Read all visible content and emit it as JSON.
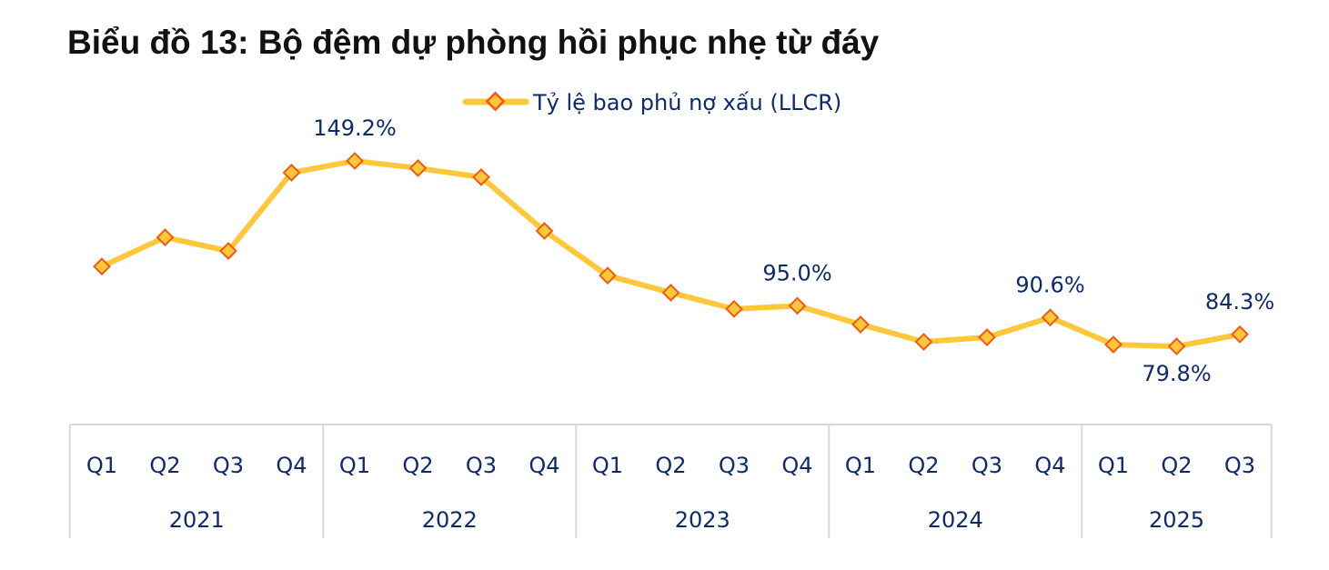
{
  "chart_data": {
    "type": "line",
    "title": "Biểu đồ 13: Bộ đệm dự phòng hồi phục nhẹ từ đáy",
    "legend": {
      "position": "top-center"
    },
    "categories": [
      "Q1",
      "Q2",
      "Q3",
      "Q4",
      "Q1",
      "Q2",
      "Q3",
      "Q4",
      "Q1",
      "Q2",
      "Q3",
      "Q4",
      "Q1",
      "Q2",
      "Q3",
      "Q4",
      "Q1",
      "Q2",
      "Q3"
    ],
    "groups": [
      {
        "label": "2021",
        "count": 4
      },
      {
        "label": "2022",
        "count": 4
      },
      {
        "label": "2023",
        "count": 4
      },
      {
        "label": "2024",
        "count": 4
      },
      {
        "label": "2025",
        "count": 3
      }
    ],
    "series": [
      {
        "name": "Tỷ lệ bao phủ nợ xấu (LLCR)",
        "unit": "%",
        "values": [
          109.7,
          120.6,
          115.5,
          144.8,
          149.2,
          146.5,
          143.1,
          123.0,
          106.3,
          99.9,
          93.8,
          95.0,
          88.0,
          81.5,
          83.2,
          90.6,
          80.5,
          79.8,
          84.3
        ],
        "color": "#FFC83A",
        "marker_edge_color": "#F05A14"
      }
    ],
    "data_labels": [
      {
        "index": 4,
        "text": "149.2%",
        "position": "above"
      },
      {
        "index": 11,
        "text": "95.0%",
        "position": "above"
      },
      {
        "index": 15,
        "text": "90.6%",
        "position": "above"
      },
      {
        "index": 17,
        "text": "79.8%",
        "position": "below"
      },
      {
        "index": 18,
        "text": "84.3%",
        "position": "above"
      }
    ],
    "y_axis_visible": false,
    "grid": false
  }
}
